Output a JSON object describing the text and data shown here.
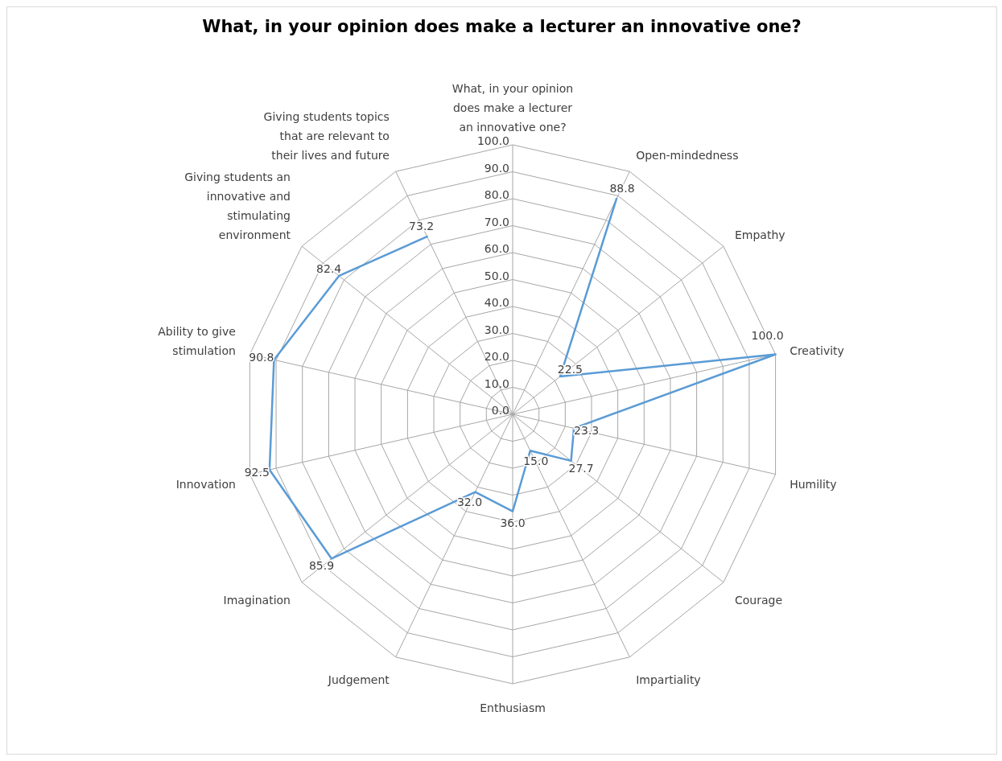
{
  "chart_data": {
    "type": "radar",
    "title": "What, in your opinion does make a lecturer an innovative one?",
    "categories": [
      "What, in your opinion does make a lecturer an innovative one?",
      "Open-mindedness",
      "Empathy",
      "Creativity",
      "Humility",
      "Courage",
      "Impartiality",
      "Enthusiasm",
      "Judgement",
      "Imagination",
      "Innovation",
      "Ability to give stimulation",
      "Giving students an innovative and stimulating environment",
      "Giving students topics that are relevant to their lives and future"
    ],
    "series": [
      {
        "color": "#5b9bd5",
        "values": [
          null,
          88.8,
          22.5,
          100.0,
          23.3,
          27.7,
          15.0,
          36.0,
          32.0,
          85.9,
          92.5,
          90.8,
          82.4,
          73.2
        ],
        "value_labels": [
          null,
          "88.8",
          "22.5",
          "100.0",
          "23.3",
          "27.7",
          "15.0",
          "36.0",
          "32.0",
          "85.9",
          "92.5",
          "90.8",
          "82.4",
          "73.2"
        ]
      }
    ],
    "ylim": [
      0,
      100
    ],
    "yticks": [
      {
        "value": 0,
        "label": "0.0"
      },
      {
        "value": 10,
        "label": "10.0"
      },
      {
        "value": 20,
        "label": "20.0"
      },
      {
        "value": 30,
        "label": "30.0"
      },
      {
        "value": 40,
        "label": "40.0"
      },
      {
        "value": 50,
        "label": "50.0"
      },
      {
        "value": 60,
        "label": "60.0"
      },
      {
        "value": 70,
        "label": "70.0"
      },
      {
        "value": 80,
        "label": "80.0"
      },
      {
        "value": 90,
        "label": "90.0"
      },
      {
        "value": 100,
        "label": "100.0"
      }
    ],
    "grid": true,
    "legend": false,
    "marker": "none"
  }
}
